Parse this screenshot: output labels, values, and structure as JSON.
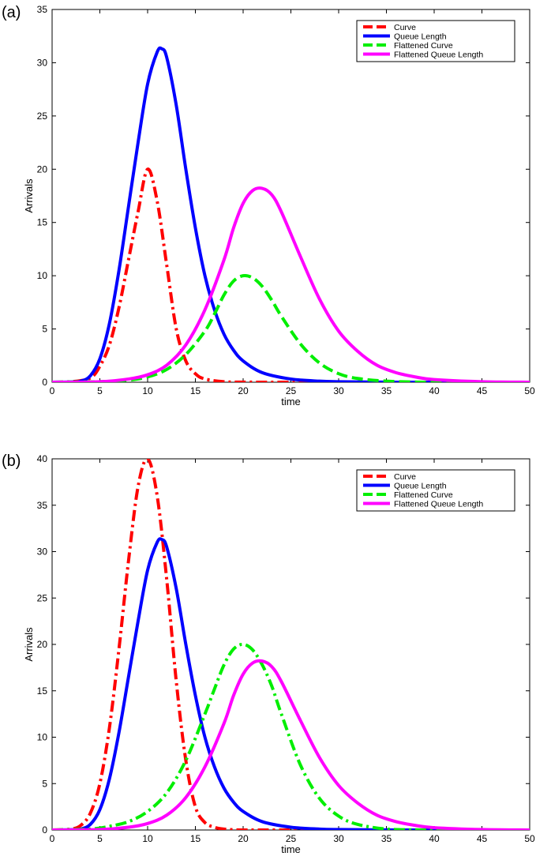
{
  "chart_data": [
    {
      "type": "line",
      "panel_label": "(a)",
      "xlabel": "time",
      "ylabel": "Arrivals",
      "xlim": [
        0,
        50
      ],
      "ylim": [
        0,
        35
      ],
      "xticks": [
        0,
        5,
        10,
        15,
        20,
        25,
        30,
        35,
        40,
        45,
        50
      ],
      "yticks": [
        0,
        5,
        10,
        15,
        20,
        25,
        30,
        35
      ],
      "legend_position": "top-right",
      "series": [
        {
          "name": "Curve",
          "color": "#ff0000",
          "style": "dashdot",
          "x": [
            0,
            2,
            4,
            5,
            6,
            7,
            8,
            9,
            10,
            11,
            12,
            13,
            14,
            15,
            16,
            18,
            20,
            25,
            30,
            50
          ],
          "values": [
            0,
            0.05,
            0.4,
            1.5,
            3.5,
            7,
            11.5,
            16,
            20,
            17,
            11,
            5,
            2,
            0.8,
            0.3,
            0.05,
            0.01,
            0,
            0,
            0
          ]
        },
        {
          "name": "Queue Length",
          "color": "#0000ff",
          "style": "solid",
          "x": [
            0,
            2,
            3,
            4,
            5,
            6,
            7,
            8,
            9,
            10,
            11,
            11.5,
            12,
            13,
            14,
            15,
            16,
            17,
            18,
            19,
            20,
            22,
            25,
            28,
            30,
            35,
            40,
            50
          ],
          "values": [
            0,
            0.03,
            0.1,
            0.6,
            2.2,
            5.5,
            10.5,
            16.5,
            22.5,
            28,
            31,
            31.3,
            30.5,
            26,
            20,
            14.5,
            10,
            6.8,
            4.5,
            3,
            2,
            0.9,
            0.3,
            0.1,
            0.05,
            0.01,
            0,
            0
          ]
        },
        {
          "name": "Flattened Curve",
          "color": "#00ee00",
          "style": "dashed",
          "x": [
            0,
            5,
            8,
            10,
            12,
            14,
            16,
            17,
            18,
            19,
            20,
            21,
            22,
            23,
            24,
            26,
            28,
            30,
            32,
            35,
            38,
            40,
            50
          ],
          "values": [
            0,
            0.05,
            0.2,
            0.5,
            1.2,
            2.6,
            4.8,
            6.4,
            8.2,
            9.5,
            10,
            9.8,
            9,
            7.7,
            6.2,
            3.6,
            1.8,
            0.8,
            0.35,
            0.1,
            0.02,
            0,
            0
          ]
        },
        {
          "name": "Flattened Queue Length",
          "color": "#ff00ff",
          "style": "solid",
          "x": [
            0,
            5,
            8,
            10,
            12,
            14,
            16,
            18,
            19,
            20,
            21,
            22,
            23,
            24,
            26,
            28,
            30,
            32,
            34,
            36,
            38,
            40,
            45,
            50
          ],
          "values": [
            0,
            0.05,
            0.3,
            0.7,
            1.6,
            3.5,
            6.8,
            11.5,
            14.5,
            16.8,
            18,
            18.2,
            17.6,
            16,
            11.8,
            7.8,
            4.8,
            2.9,
            1.6,
            0.9,
            0.5,
            0.25,
            0.05,
            0
          ]
        }
      ]
    },
    {
      "type": "line",
      "panel_label": "(b)",
      "xlabel": "time",
      "ylabel": "Arrivals",
      "xlim": [
        0,
        50
      ],
      "ylim": [
        0,
        40
      ],
      "xticks": [
        0,
        5,
        10,
        15,
        20,
        25,
        30,
        35,
        40,
        45,
        50
      ],
      "yticks": [
        0,
        5,
        10,
        15,
        20,
        25,
        30,
        35,
        40
      ],
      "legend_position": "top-right",
      "series": [
        {
          "name": "Curve",
          "color": "#ff0000",
          "style": "dashdot",
          "x": [
            0,
            2,
            3,
            4,
            5,
            6,
            7,
            8,
            9,
            10,
            11,
            12,
            13,
            14,
            15,
            16,
            17,
            18,
            20,
            25,
            50
          ],
          "values": [
            0,
            0.1,
            0.5,
            1.8,
            5,
            11,
            19.5,
            29,
            37,
            40,
            36,
            27,
            16,
            7.5,
            2.5,
            0.8,
            0.3,
            0.1,
            0,
            0,
            0
          ]
        },
        {
          "name": "Queue Length",
          "color": "#0000ff",
          "style": "solid",
          "x": [
            0,
            2,
            3,
            4,
            5,
            6,
            7,
            8,
            9,
            10,
            11,
            11.5,
            12,
            13,
            14,
            15,
            16,
            17,
            18,
            19,
            20,
            22,
            25,
            28,
            30,
            35,
            40,
            50
          ],
          "values": [
            0,
            0.03,
            0.1,
            0.6,
            2.2,
            5.5,
            10.5,
            16.5,
            22.5,
            28,
            31,
            31.3,
            30.5,
            26,
            20,
            14.5,
            10,
            6.8,
            4.5,
            3,
            2,
            0.9,
            0.3,
            0.1,
            0.05,
            0.01,
            0,
            0
          ]
        },
        {
          "name": "Flattened Curve",
          "color": "#00ee00",
          "style": "dashdot",
          "x": [
            0,
            4,
            6,
            8,
            10,
            12,
            14,
            16,
            17,
            18,
            19,
            20,
            21,
            22,
            23,
            24,
            26,
            28,
            30,
            32,
            35,
            38,
            40,
            50
          ],
          "values": [
            0,
            0.1,
            0.4,
            0.9,
            2,
            4,
            7.5,
            12.5,
            15.2,
            17.8,
            19.5,
            20,
            19.4,
            17.8,
            15.5,
            12.5,
            7,
            3.4,
            1.5,
            0.6,
            0.1,
            0.02,
            0,
            0
          ]
        },
        {
          "name": "Flattened Queue Length",
          "color": "#ff00ff",
          "style": "solid",
          "x": [
            0,
            5,
            8,
            10,
            12,
            14,
            16,
            18,
            19,
            20,
            21,
            22,
            23,
            24,
            26,
            28,
            30,
            32,
            34,
            36,
            38,
            40,
            45,
            50
          ],
          "values": [
            0,
            0.05,
            0.3,
            0.7,
            1.6,
            3.5,
            6.8,
            11.5,
            14.5,
            16.8,
            18,
            18.2,
            17.6,
            16,
            11.8,
            7.8,
            4.8,
            2.9,
            1.6,
            0.9,
            0.5,
            0.25,
            0.05,
            0
          ]
        }
      ]
    }
  ]
}
